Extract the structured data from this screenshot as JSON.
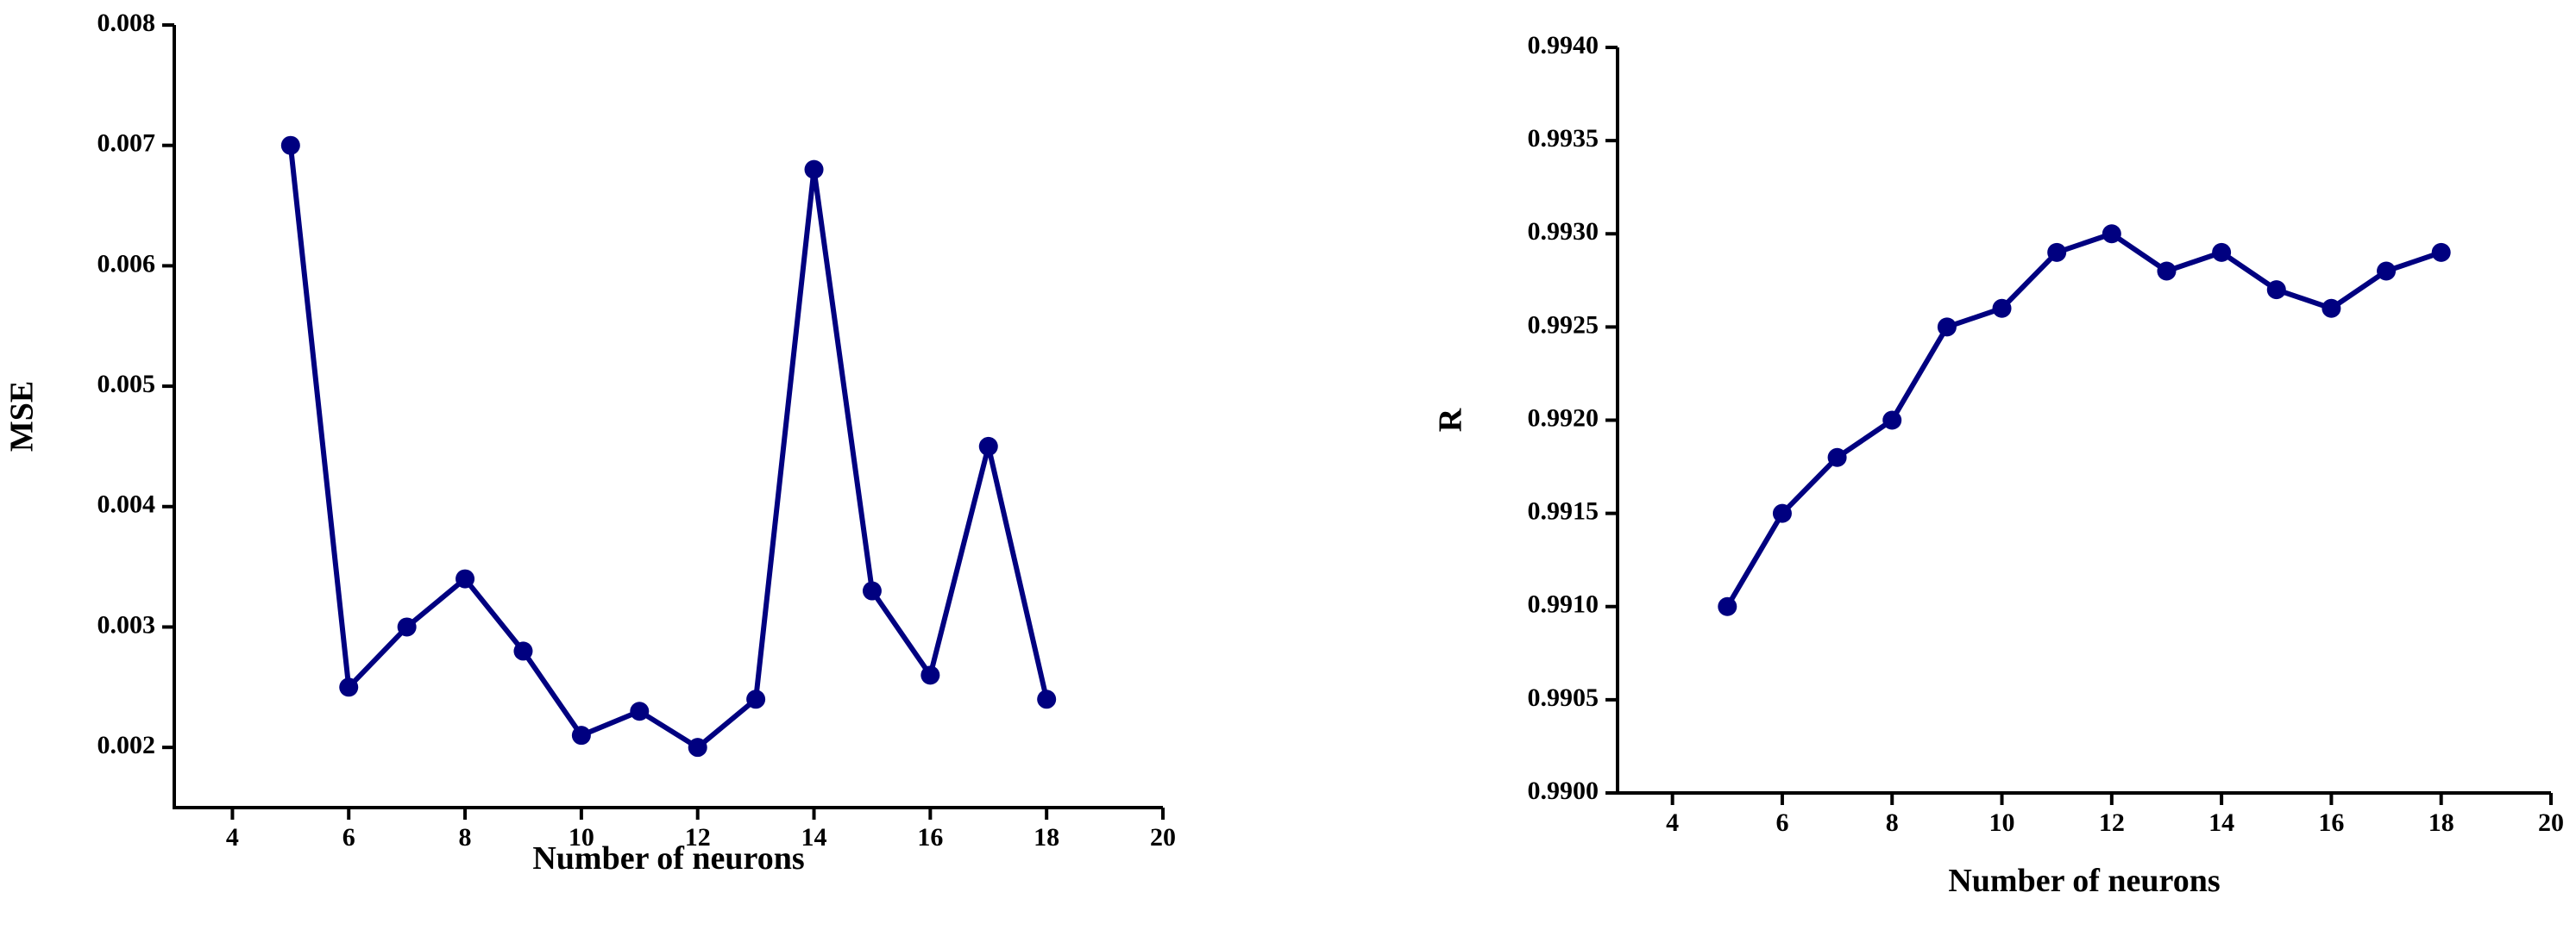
{
  "chart_data": [
    {
      "type": "line",
      "x_label": "Number of neurons",
      "y_label": "MSE",
      "x": [
        5,
        6,
        7,
        8,
        9,
        10,
        11,
        12,
        13,
        14,
        15,
        16,
        17,
        18
      ],
      "series": [
        {
          "color": "#000080",
          "values": [
            0.007,
            0.0025,
            0.003,
            0.0034,
            0.0028,
            0.0021,
            0.0023,
            0.002,
            0.0024,
            0.0068,
            0.0033,
            0.0026,
            0.0045,
            0.0024
          ]
        }
      ],
      "xlim": [
        3,
        20
      ],
      "xticks": [
        4,
        6,
        8,
        10,
        12,
        14,
        16,
        18,
        20
      ],
      "ylim": [
        0.0015,
        0.008
      ],
      "yticks": [
        0.002,
        0.003,
        0.004,
        0.005,
        0.006,
        0.007,
        0.008
      ]
    },
    {
      "type": "line",
      "x_label": "Number of neurons",
      "y_label": "R",
      "x": [
        5,
        6,
        7,
        8,
        9,
        10,
        11,
        12,
        13,
        14,
        15,
        16,
        17,
        18
      ],
      "series": [
        {
          "color": "#000080",
          "values": [
            0.991,
            0.9915,
            0.9918,
            0.992,
            0.9925,
            0.9926,
            0.9929,
            0.993,
            0.9928,
            0.9929,
            0.9927,
            0.9926,
            0.9928,
            0.9929
          ]
        }
      ],
      "xlim": [
        3,
        20
      ],
      "xticks": [
        4,
        6,
        8,
        10,
        12,
        14,
        16,
        18,
        20
      ],
      "ylim": [
        0.99,
        0.994
      ],
      "yticks": [
        {
          "value": 0.99,
          "label": "0.9900"
        },
        {
          "value": 0.9905,
          "label": "0.9905"
        },
        {
          "value": 0.991,
          "label": "0.9910"
        },
        {
          "value": 0.9915,
          "label": "0.9915"
        },
        {
          "value": 0.992,
          "label": "0.9920"
        },
        {
          "value": 0.9925,
          "label": "0.9925"
        },
        {
          "value": 0.993,
          "label": "0.9930"
        },
        {
          "value": 0.9935,
          "label": "0.9935"
        },
        {
          "value": 0.994,
          "label": "0.9940"
        }
      ]
    }
  ]
}
